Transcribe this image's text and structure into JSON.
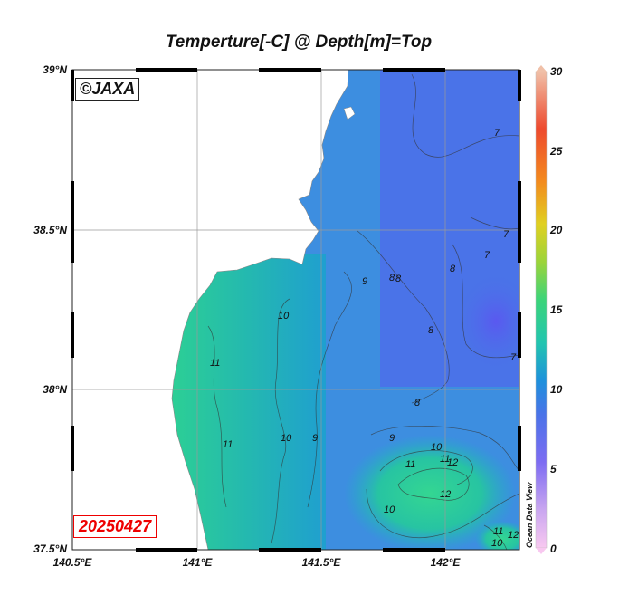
{
  "title": "Temperture[-C] @ Depth[m]=Top",
  "watermark": "©JAXA",
  "date_stamp": "20250427",
  "ocean_data_view_label": "Ocean Data View",
  "axes": {
    "lat_labels": [
      "39°N",
      "38.5°N",
      "38°N",
      "37.5°N"
    ],
    "lon_labels": [
      "140.5°E",
      "141°E",
      "141.5°E",
      "142°E"
    ]
  },
  "colorbar": {
    "labels": [
      "30",
      "25",
      "20",
      "15",
      "10",
      "5",
      "0"
    ],
    "range": [
      0,
      30
    ]
  },
  "contour_labels": [
    "7",
    "7",
    "8",
    "7",
    "9",
    "8",
    "8",
    "10",
    "8",
    "7",
    "11",
    "8",
    "11",
    "10",
    "9",
    "9",
    "10",
    "11",
    "11",
    "12",
    "12",
    "10",
    "11",
    "10",
    "12"
  ],
  "colors": {
    "land": "#ffffff",
    "ocean_cool": "#4a73e8",
    "ocean_mid": "#2e9fd8",
    "ocean_warm": "#29c9a0",
    "date_red": "#e00000"
  }
}
